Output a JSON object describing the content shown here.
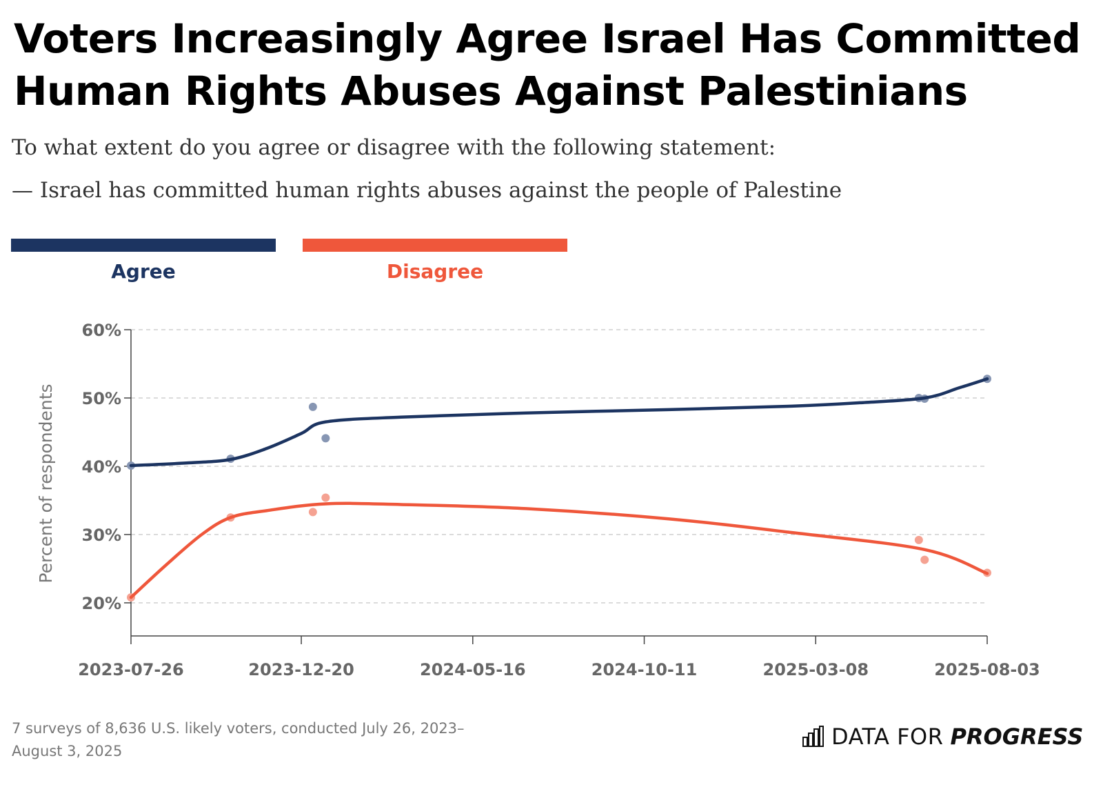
{
  "header": {
    "title_line1": "Voters Increasingly Agree Israel Has Committed",
    "title_line2": "Human Rights Abuses Against Palestinians",
    "question_line1": "To what extent do you agree or disagree with the following statement:",
    "question_line2": "— Israel has committed human rights abuses against the people of Palestine"
  },
  "legend": {
    "agree_label": "Agree",
    "disagree_label": "Disagree"
  },
  "colors": {
    "agree": "#1c3461",
    "disagree": "#ef573b",
    "agree_point": "#8796b3",
    "disagree_point": "#f5a292",
    "grid": "#cfcfcf",
    "axis": "#444444"
  },
  "chart_data": {
    "type": "line",
    "ylabel": "Percent of respondents",
    "ylim": [
      20,
      60
    ],
    "y_ticks": [
      "20%",
      "30%",
      "40%",
      "50%",
      "60%"
    ],
    "x_ticks": [
      "2023-07-26",
      "2023-12-20",
      "2024-05-16",
      "2024-10-11",
      "2025-03-08",
      "2025-08-03"
    ],
    "xlim": [
      "2023-07-26",
      "2025-08-03"
    ],
    "grid": "horizontal dashed",
    "series": [
      {
        "name": "Agree",
        "trend": [
          {
            "x": "2023-07-26",
            "y": 40.1
          },
          {
            "x": "2023-09-14",
            "y": 40.5
          },
          {
            "x": "2023-10-20",
            "y": 41.0
          },
          {
            "x": "2023-11-20",
            "y": 42.6
          },
          {
            "x": "2023-12-20",
            "y": 44.8
          },
          {
            "x": "2024-01-10",
            "y": 46.5
          },
          {
            "x": "2024-03-15",
            "y": 47.2
          },
          {
            "x": "2024-07-01",
            "y": 47.8
          },
          {
            "x": "2024-11-01",
            "y": 48.3
          },
          {
            "x": "2025-02-15",
            "y": 48.8
          },
          {
            "x": "2025-04-15",
            "y": 49.3
          },
          {
            "x": "2025-06-10",
            "y": 50.0
          },
          {
            "x": "2025-07-10",
            "y": 51.5
          },
          {
            "x": "2025-08-03",
            "y": 52.8
          }
        ],
        "points": [
          {
            "x": "2023-07-26",
            "y": 40.1
          },
          {
            "x": "2023-10-20",
            "y": 41.1
          },
          {
            "x": "2023-12-30",
            "y": 48.7
          },
          {
            "x": "2024-01-10",
            "y": 44.1
          },
          {
            "x": "2025-06-05",
            "y": 50.0
          },
          {
            "x": "2025-06-10",
            "y": 49.9
          },
          {
            "x": "2025-08-03",
            "y": 52.8
          }
        ]
      },
      {
        "name": "Disagree",
        "trend": [
          {
            "x": "2023-07-26",
            "y": 20.8
          },
          {
            "x": "2023-08-25",
            "y": 25.5
          },
          {
            "x": "2023-09-25",
            "y": 30.0
          },
          {
            "x": "2023-10-20",
            "y": 32.5
          },
          {
            "x": "2023-11-20",
            "y": 33.5
          },
          {
            "x": "2024-01-10",
            "y": 34.5
          },
          {
            "x": "2024-03-15",
            "y": 34.4
          },
          {
            "x": "2024-07-01",
            "y": 33.8
          },
          {
            "x": "2024-11-01",
            "y": 32.3
          },
          {
            "x": "2025-02-15",
            "y": 30.3
          },
          {
            "x": "2025-06-10",
            "y": 27.8
          },
          {
            "x": "2025-08-03",
            "y": 24.3
          }
        ],
        "points": [
          {
            "x": "2023-07-26",
            "y": 20.8
          },
          {
            "x": "2023-10-20",
            "y": 32.5
          },
          {
            "x": "2023-12-30",
            "y": 33.3
          },
          {
            "x": "2024-01-10",
            "y": 35.4
          },
          {
            "x": "2025-06-05",
            "y": 29.2
          },
          {
            "x": "2025-06-10",
            "y": 26.3
          },
          {
            "x": "2025-08-03",
            "y": 24.4
          }
        ]
      }
    ]
  },
  "footer": {
    "note_line1": "7 surveys of 8,636 U.S. likely voters, conducted July 26, 2023–",
    "note_line2": "August 3, 2025",
    "logo_part1": "DATA FOR",
    "logo_part2": "PROGRESS"
  }
}
